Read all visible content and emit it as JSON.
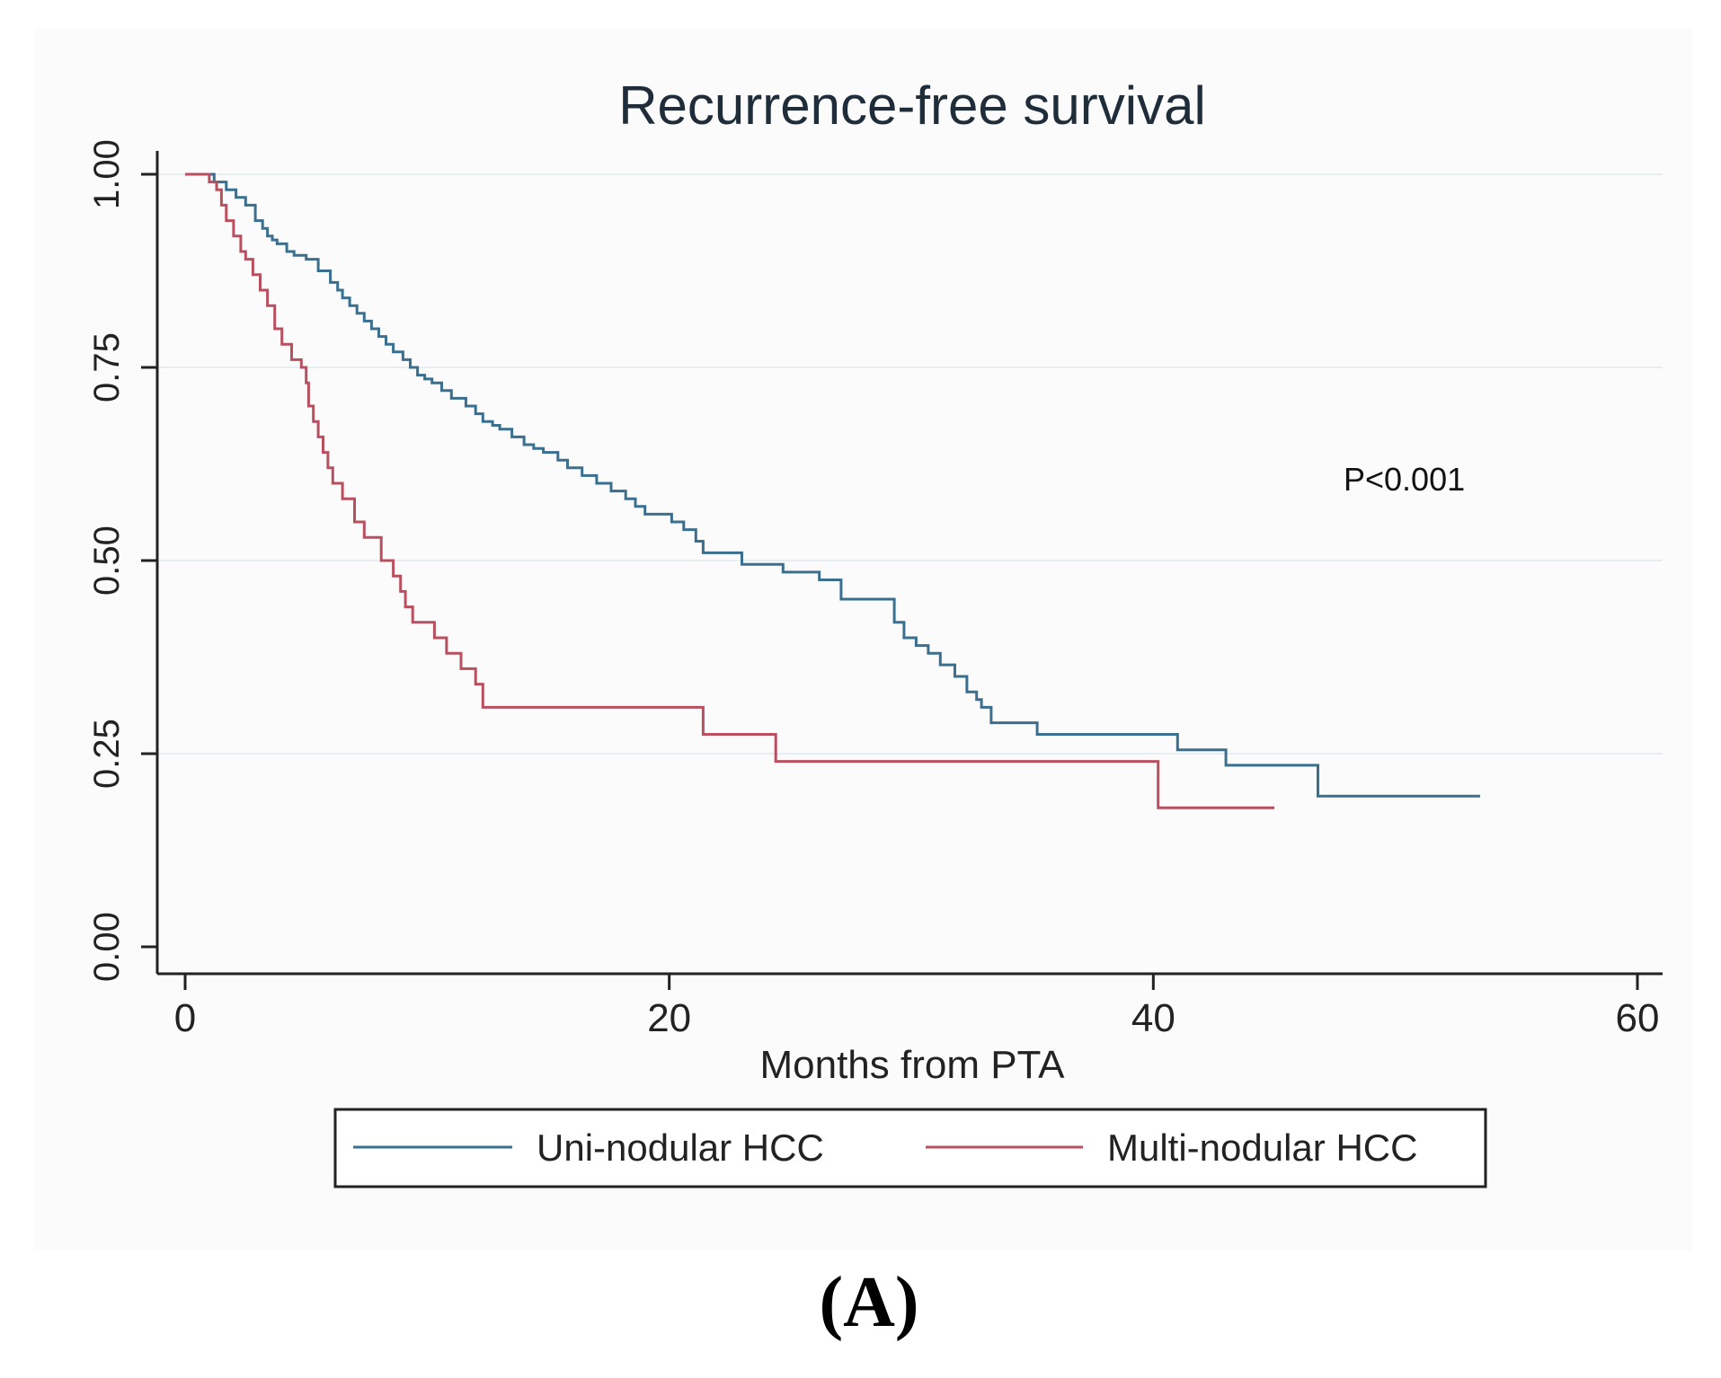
{
  "chart_data": {
    "type": "line",
    "title": "Recurrence-free survival",
    "xlabel": "Months from PTA",
    "ylabel": "",
    "xlim": [
      0,
      60
    ],
    "ylim": [
      0,
      1
    ],
    "xticks": [
      "0",
      "20",
      "40",
      "60"
    ],
    "yticks": [
      "0.00",
      "0.25",
      "0.50",
      "0.75",
      "1.00"
    ],
    "grid": true,
    "legend_position": "bottom",
    "annotation": "P<0.001",
    "panel_label": "(A)",
    "series": [
      {
        "name": "Uni-nodular HCC",
        "color": "#3a6f8f",
        "x": [
          0,
          1.2,
          1.7,
          2.1,
          2.5,
          2.9,
          3.2,
          3.4,
          3.6,
          3.8,
          4.2,
          4.5,
          5.0,
          5.5,
          6.0,
          6.3,
          6.5,
          6.8,
          7.1,
          7.4,
          7.7,
          8.0,
          8.3,
          8.6,
          9.0,
          9.3,
          9.6,
          9.9,
          10.2,
          10.6,
          11.0,
          11.6,
          12.0,
          12.3,
          12.7,
          13.0,
          13.5,
          14.0,
          14.4,
          14.8,
          15.4,
          15.8,
          16.4,
          17.0,
          17.6,
          18.2,
          18.6,
          19.0,
          20.1,
          20.6,
          21.1,
          21.4,
          23.0,
          24.7,
          26.2,
          27.1,
          29.3,
          29.7,
          30.2,
          30.7,
          31.2,
          31.8,
          32.3,
          32.7,
          32.9,
          33.3,
          35.2,
          41.0,
          43.0,
          46.8,
          53.5
        ],
        "y": [
          1.0,
          0.99,
          0.98,
          0.97,
          0.96,
          0.94,
          0.93,
          0.92,
          0.915,
          0.91,
          0.9,
          0.895,
          0.89,
          0.875,
          0.86,
          0.85,
          0.84,
          0.83,
          0.82,
          0.81,
          0.8,
          0.79,
          0.78,
          0.77,
          0.76,
          0.75,
          0.74,
          0.735,
          0.73,
          0.72,
          0.71,
          0.7,
          0.69,
          0.68,
          0.675,
          0.67,
          0.66,
          0.65,
          0.645,
          0.64,
          0.63,
          0.62,
          0.61,
          0.6,
          0.59,
          0.58,
          0.57,
          0.56,
          0.55,
          0.54,
          0.525,
          0.51,
          0.495,
          0.485,
          0.475,
          0.45,
          0.42,
          0.4,
          0.39,
          0.38,
          0.365,
          0.35,
          0.33,
          0.32,
          0.31,
          0.29,
          0.275,
          0.255,
          0.235,
          0.195,
          0.195
        ]
      },
      {
        "name": "Multi-nodular HCC",
        "color": "#b8505f",
        "x": [
          0,
          1.0,
          1.3,
          1.5,
          1.7,
          2.0,
          2.3,
          2.5,
          2.8,
          3.1,
          3.4,
          3.7,
          4.0,
          4.4,
          4.8,
          5.0,
          5.1,
          5.3,
          5.5,
          5.7,
          5.9,
          6.1,
          6.5,
          7.0,
          7.4,
          8.1,
          8.6,
          8.9,
          9.1,
          9.4,
          10.3,
          10.8,
          11.4,
          12.0,
          12.3,
          21.4,
          24.4,
          40.2,
          45.0
        ],
        "y": [
          1.0,
          0.99,
          0.98,
          0.96,
          0.94,
          0.92,
          0.9,
          0.89,
          0.87,
          0.85,
          0.83,
          0.8,
          0.78,
          0.76,
          0.75,
          0.73,
          0.7,
          0.68,
          0.66,
          0.64,
          0.62,
          0.6,
          0.58,
          0.55,
          0.53,
          0.5,
          0.48,
          0.46,
          0.44,
          0.42,
          0.4,
          0.38,
          0.36,
          0.34,
          0.31,
          0.275,
          0.24,
          0.18,
          0.18
        ]
      }
    ]
  }
}
